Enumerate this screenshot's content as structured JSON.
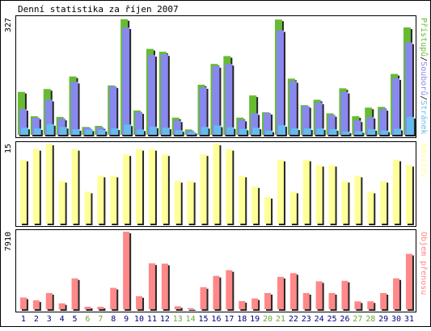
{
  "chart_data": {
    "type": "bar",
    "title": "Denní statistika za říjen 2007",
    "categories": [
      "1",
      "2",
      "3",
      "4",
      "5",
      "6",
      "7",
      "8",
      "9",
      "10",
      "11",
      "12",
      "13",
      "14",
      "15",
      "16",
      "17",
      "18",
      "19",
      "20",
      "21",
      "22",
      "23",
      "24",
      "25",
      "26",
      "27",
      "28",
      "29",
      "30",
      "31"
    ],
    "weekend_days": [
      "6",
      "7",
      "13",
      "14",
      "20",
      "21",
      "27",
      "28"
    ],
    "colors": {
      "background": "#ffffff",
      "frame": "#000000",
      "pristupu": "#66bb33",
      "souboru": "#8888ee",
      "stranek": "#66bbee",
      "navstev": "#ffff99",
      "objem": "#ff8888",
      "weekday_label": "#000080",
      "weekend_label": "#66aa33"
    },
    "panels": [
      {
        "id": "traffic",
        "ymax_label": "327",
        "ylim": [
          0,
          327
        ],
        "legend": [
          {
            "text": "Přístupů",
            "color": "#66bb33"
          },
          {
            "text": "Souborů",
            "color": "#8888ee"
          },
          {
            "text": "Stránek",
            "color": "#66bbee"
          }
        ],
        "legend_separator": "/",
        "series": [
          {
            "name": "Přístupů",
            "values": [
              120,
              52,
              128,
              50,
              163,
              22,
              25,
              138,
              323,
              68,
              240,
              232,
              48,
              15,
              140,
              198,
              220,
              48,
              110,
              63,
              322,
              157,
              83,
              98,
              60,
              130,
              52,
              76,
              78,
              170,
              300
            ]
          },
          {
            "name": "Souborů",
            "values": [
              72,
              48,
              98,
              45,
              148,
              20,
              21,
              135,
              300,
              63,
              223,
              225,
              40,
              12,
              133,
              192,
              198,
              42,
              60,
              61,
              292,
              150,
              80,
              90,
              55,
              120,
              40,
              50,
              72,
              158,
              258
            ]
          },
          {
            "name": "Stránek",
            "values": [
              20,
              18,
              30,
              22,
              16,
              15,
              14,
              18,
              29,
              15,
              23,
              20,
              13,
              8,
              22,
              26,
              21,
              17,
              20,
              12,
              27,
              18,
              18,
              18,
              16,
              9,
              10,
              16,
              12,
              17,
              50
            ]
          }
        ]
      },
      {
        "id": "visits",
        "ymax_label": "15",
        "ylim": [
          0,
          15
        ],
        "legend": [
          {
            "text": "Návštěv",
            "color": "#ffff99"
          }
        ],
        "series": [
          {
            "name": "Návštěv",
            "values": [
              12,
              14,
              15,
              8,
              14,
              6,
              9,
              9,
              13,
              14,
              14,
              13,
              8,
              8,
              13,
              15,
              14,
              9,
              7,
              5,
              12,
              6,
              12,
              11,
              11,
              8,
              9,
              6,
              8,
              12,
              11
            ]
          }
        ]
      },
      {
        "id": "volume",
        "ymax_label": "7910",
        "ylim": [
          0,
          7910
        ],
        "legend": [
          {
            "text": "Objem přenosu",
            "color": "#ff8888"
          }
        ],
        "series": [
          {
            "name": "Objem přenosu",
            "values": [
              1200,
              900,
              1650,
              600,
              3150,
              250,
              250,
              2180,
              7910,
              1330,
              4680,
              4650,
              300,
              110,
              2250,
              3400,
              3980,
              830,
              1100,
              1650,
              3300,
              3680,
              1650,
              2850,
              1650,
              2900,
              800,
              800,
              1650,
              3150,
              5650
            ]
          }
        ]
      }
    ]
  }
}
